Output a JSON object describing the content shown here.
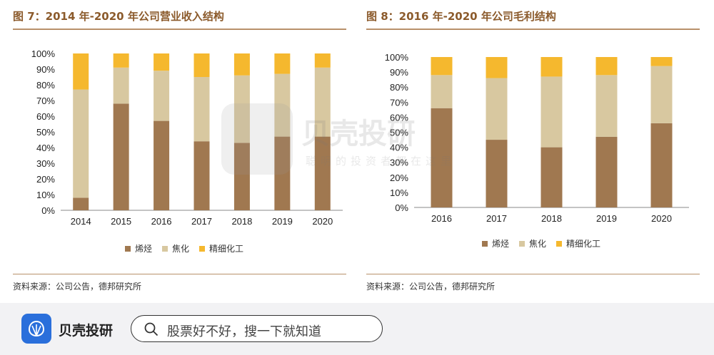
{
  "colors": {
    "accent": "#8b5a2b",
    "rule": "#b8906a",
    "olefin": "#a07850",
    "coke": "#d8c8a0",
    "fine_chem": "#f5b82e",
    "app_blue": "#2a6fdb"
  },
  "left": {
    "title": "图 7：2014 年-2020 年公司营业收入结构",
    "source": "资料来源：公司公告，德邦研究所"
  },
  "right": {
    "title": "图 8：2016 年-2020 年公司毛利结构",
    "source": "资料来源：公司公告，德邦研究所"
  },
  "chart_data": [
    {
      "type": "bar",
      "stacked": true,
      "title": "图 7：2014 年-2020 年公司营业收入结构",
      "categories": [
        "2014",
        "2015",
        "2016",
        "2017",
        "2018",
        "2019",
        "2020"
      ],
      "series": [
        {
          "name": "烯烃",
          "values": [
            8,
            68,
            57,
            44,
            43,
            47,
            47
          ]
        },
        {
          "name": "焦化",
          "values": [
            69,
            23,
            32,
            41,
            43,
            40,
            44
          ]
        },
        {
          "name": "精细化工",
          "values": [
            23,
            9,
            11,
            15,
            14,
            13,
            9
          ]
        }
      ],
      "ylim": [
        0,
        100
      ],
      "yticks": [
        "0%",
        "10%",
        "20%",
        "30%",
        "40%",
        "50%",
        "60%",
        "70%",
        "80%",
        "90%",
        "100%"
      ],
      "grid": false,
      "legend": "bottom"
    },
    {
      "type": "bar",
      "stacked": true,
      "title": "图 8：2016 年-2020 年公司毛利结构",
      "categories": [
        "2016",
        "2017",
        "2018",
        "2019",
        "2020"
      ],
      "series": [
        {
          "name": "烯烃",
          "values": [
            66,
            45,
            40,
            47,
            56
          ]
        },
        {
          "name": "焦化",
          "values": [
            22,
            41,
            47,
            41,
            38
          ]
        },
        {
          "name": "精细化工",
          "values": [
            12,
            14,
            13,
            12,
            6
          ]
        }
      ],
      "ylim": [
        0,
        100
      ],
      "yticks": [
        "0%",
        "10%",
        "20%",
        "30%",
        "40%",
        "50%",
        "60%",
        "70%",
        "80%",
        "90%",
        "100%"
      ],
      "grid": false,
      "legend": "bottom"
    }
  ],
  "watermark": {
    "name": "贝壳投研",
    "slogan": "聪明的投资者都在这里"
  },
  "app": {
    "name": "贝壳投研",
    "search_placeholder": "股票好不好，搜一下就知道"
  }
}
